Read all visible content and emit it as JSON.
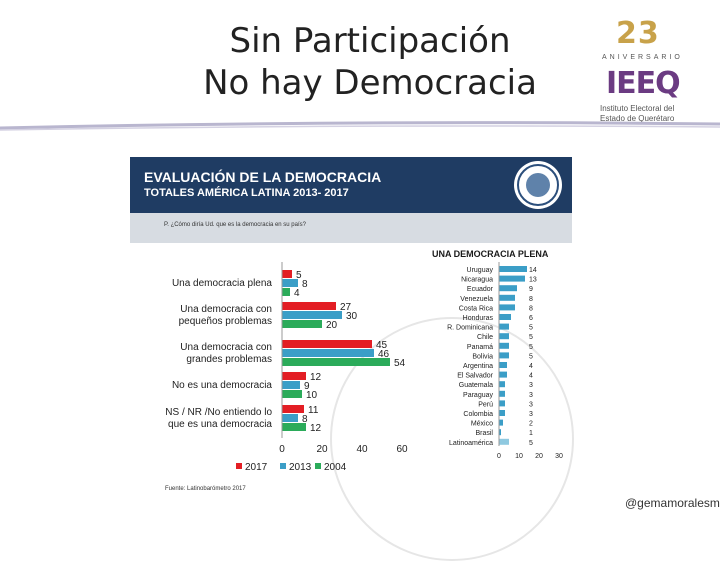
{
  "slide": {
    "title_line1": "Sin Participación",
    "title_line2": "No hay Democracia",
    "handle": "@gemamoralesmar"
  },
  "logo": {
    "number_a": "2",
    "number_b": "3",
    "aniversario": "ANIVERSARIO",
    "brand": "IEEQ",
    "institute_line1": "Instituto Electoral del",
    "institute_line2": "Estado de Querétaro"
  },
  "chart_header": {
    "title": "EVALUACIÓN DE LA DEMOCRACIA",
    "subtitle": "TOTALES AMÉRICA LATINA 2013- 2017",
    "question": "P. ¿Cómo diría Ud. que es la democracia en su país?",
    "source": "Fuente: Latinobarómetro 2017"
  },
  "colors": {
    "c2017": "#e31e24",
    "c2013": "#3b9ec7",
    "c2004": "#2bab5a",
    "header": "#1f3c63"
  },
  "chart_data": [
    {
      "type": "bar",
      "orientation": "horizontal",
      "categories": [
        "Una democracia plena",
        "Una democracia con pequeños problemas",
        "Una democracia con grandes problemas",
        "No es una democracia",
        "NS / NR /No entiendo lo que es una democracia"
      ],
      "category_lines": [
        [
          "Una democracia plena"
        ],
        [
          "Una democracia con",
          "pequeños problemas"
        ],
        [
          "Una democracia con",
          "grandes problemas"
        ],
        [
          "No es una democracia"
        ],
        [
          "NS / NR /No entiendo lo",
          "que es una democracia"
        ]
      ],
      "series": [
        {
          "name": "2017",
          "values": [
            5,
            27,
            45,
            12,
            11
          ]
        },
        {
          "name": "2013",
          "values": [
            8,
            30,
            46,
            9,
            8
          ]
        },
        {
          "name": "2004",
          "values": [
            4,
            20,
            54,
            10,
            12
          ]
        }
      ],
      "xticks": [
        "0",
        "20",
        "40",
        "60"
      ],
      "xlim": [
        0,
        60
      ]
    },
    {
      "type": "bar",
      "orientation": "horizontal",
      "title": "UNA DEMOCRACIA PLENA",
      "categories": [
        "Uruguay",
        "Nicaragua",
        "Ecuador",
        "Venezuela",
        "Costa Rica",
        "Honduras",
        "R. Dominicana",
        "Chile",
        "Panamá",
        "Bolivia",
        "Argentina",
        "El Salvador",
        "Guatemala",
        "Paraguay",
        "Perú",
        "Colombia",
        "México",
        "Brasil",
        "Latinoamérica"
      ],
      "values": [
        14,
        13,
        9,
        8,
        8,
        6,
        5,
        5,
        5,
        5,
        4,
        4,
        3,
        3,
        3,
        3,
        2,
        1,
        5
      ],
      "xticks": [
        "0",
        "10",
        "20",
        "30"
      ],
      "xlim": [
        0,
        30
      ]
    }
  ]
}
